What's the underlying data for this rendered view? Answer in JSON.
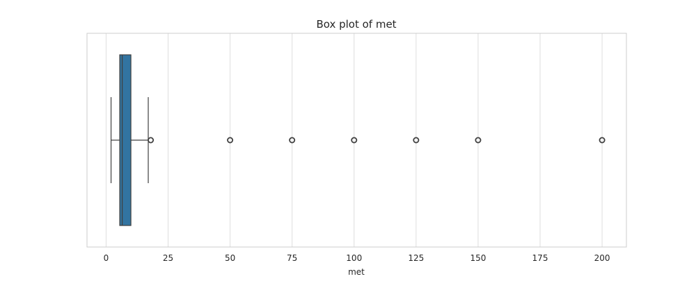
{
  "chart_data": {
    "type": "box",
    "title": "Box plot of met",
    "xlabel": "met",
    "ylabel": "",
    "xlim": [
      -7.7,
      209.8
    ],
    "xticks": [
      0,
      25,
      50,
      75,
      100,
      125,
      150,
      175,
      200
    ],
    "orientation": "horizontal",
    "grid": true,
    "series": [
      {
        "whisker_low": 2,
        "q1": 5.5,
        "median": 6.5,
        "q3": 10,
        "whisker_high": 17,
        "outliers": [
          18,
          50,
          75,
          100,
          125,
          150,
          200
        ]
      }
    ],
    "colors": {
      "box_fill": "#3274a1",
      "line": "#3f3f3f",
      "grid": "#dedede",
      "frame": "#cccccc"
    }
  }
}
